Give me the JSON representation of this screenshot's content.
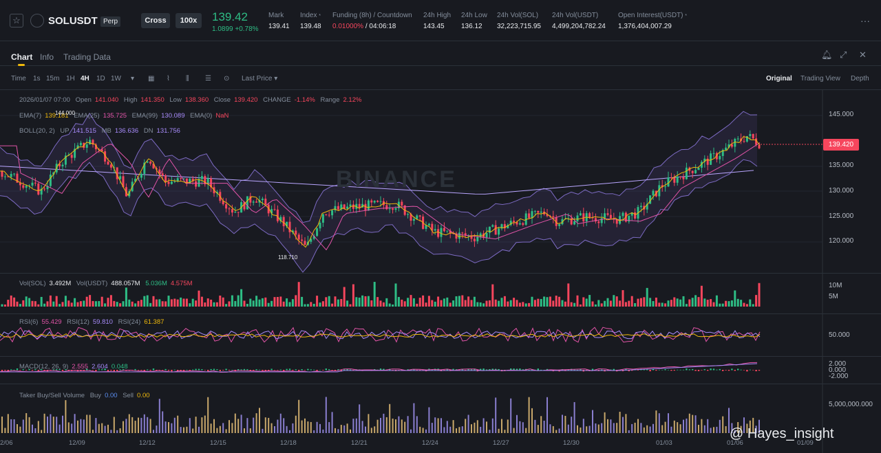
{
  "header": {
    "symbol": "SOLUSDT",
    "contract": "Perp",
    "margin_mode": "Cross",
    "leverage": "100x",
    "last_price": "139.42",
    "change": "1.0899 +0.78%",
    "stats": [
      {
        "label": "Mark",
        "value": "139.41"
      },
      {
        "label": "Index",
        "value": "139.48"
      },
      {
        "label": "Funding (8h) / Countdown",
        "value_rate": "0.01000%",
        "value_time": "/ 04:06:18"
      },
      {
        "label": "24h High",
        "value": "143.45"
      },
      {
        "label": "24h Low",
        "value": "136.12"
      },
      {
        "label": "24h Vol(SOL)",
        "value": "32,223,715.95"
      },
      {
        "label": "24h Vol(USDT)",
        "value": "4,499,204,782.24"
      },
      {
        "label": "Open Interest(USDT)",
        "value": "1,376,404,007.29"
      }
    ]
  },
  "tabs": [
    "Chart",
    "Info",
    "Trading Data"
  ],
  "toolbar": {
    "intervals": [
      "Time",
      "1s",
      "15m",
      "1H",
      "4H",
      "1D",
      "1W"
    ],
    "active_interval": "4H",
    "price_type": "Last Price",
    "views": [
      "Original",
      "Trading View",
      "Depth"
    ],
    "active_view": "Original"
  },
  "overlay": {
    "date": "2026/01/07 07:00",
    "open_label": "Open",
    "open": "141.040",
    "high_label": "High",
    "high": "141.350",
    "low_label": "Low",
    "low": "138.360",
    "close_label": "Close",
    "close": "139.420",
    "change_label": "CHANGE",
    "change": "-1.14%",
    "range_label": "Range",
    "range": "2.12%",
    "ema7_label": "EMA(7)",
    "ema7": "139.181",
    "ema25_label": "EMA(25)",
    "ema25": "135.725",
    "ema99_label": "EMA(99)",
    "ema99": "130.089",
    "ema0_label": "EMA(0)",
    "ema0": "NaN",
    "boll_label": "BOLL(20, 2)",
    "up_label": "UP",
    "up": "141.515",
    "mb_label": "MB",
    "mb": "136.636",
    "dn_label": "DN",
    "dn": "131.756"
  },
  "price_axis": [
    "145.000",
    "135.000",
    "130.000",
    "125.000",
    "120.000"
  ],
  "current_price_tag": "139.420",
  "marker_high": "144.000",
  "marker_low": "118.710",
  "watermark": "BINANCE",
  "volume": {
    "label1": "Vol(SOL)",
    "v1": "3.492M",
    "label2": "Vol(USDT)",
    "v2": "488.057M",
    "ma1": "5.036M",
    "ma2": "4.575M",
    "axis": [
      "10M",
      "5M"
    ]
  },
  "rsi": {
    "l6": "RSI(6)",
    "v6": "55.429",
    "l12": "RSI(12)",
    "v12": "59.810",
    "l24": "RSI(24)",
    "v24": "61.387",
    "axis": [
      "50.000"
    ]
  },
  "macd": {
    "label": "MACD(12, 26, 9)",
    "dif": "2.555",
    "dea": "2.604",
    "hist": "0.048",
    "axis": [
      "2.000",
      "0.000",
      "-2.000"
    ]
  },
  "taker": {
    "label": "Taker Buy/Sell Volume",
    "buy_label": "Buy",
    "buy": "0.00",
    "sell_label": "Sell",
    "sell": "0.00",
    "axis": [
      "5,000,000.000"
    ]
  },
  "dates": [
    "2/06",
    "12/09",
    "12/12",
    "12/15",
    "12/18",
    "12/21",
    "12/24",
    "12/27",
    "12/30",
    "01/03",
    "01/06",
    "01/09"
  ],
  "corner_watermark": "@ Hayes_insight",
  "colors": {
    "up": "#2ebd85",
    "down": "#f6465d",
    "bg": "#181a20",
    "accent": "#f0b90b"
  }
}
